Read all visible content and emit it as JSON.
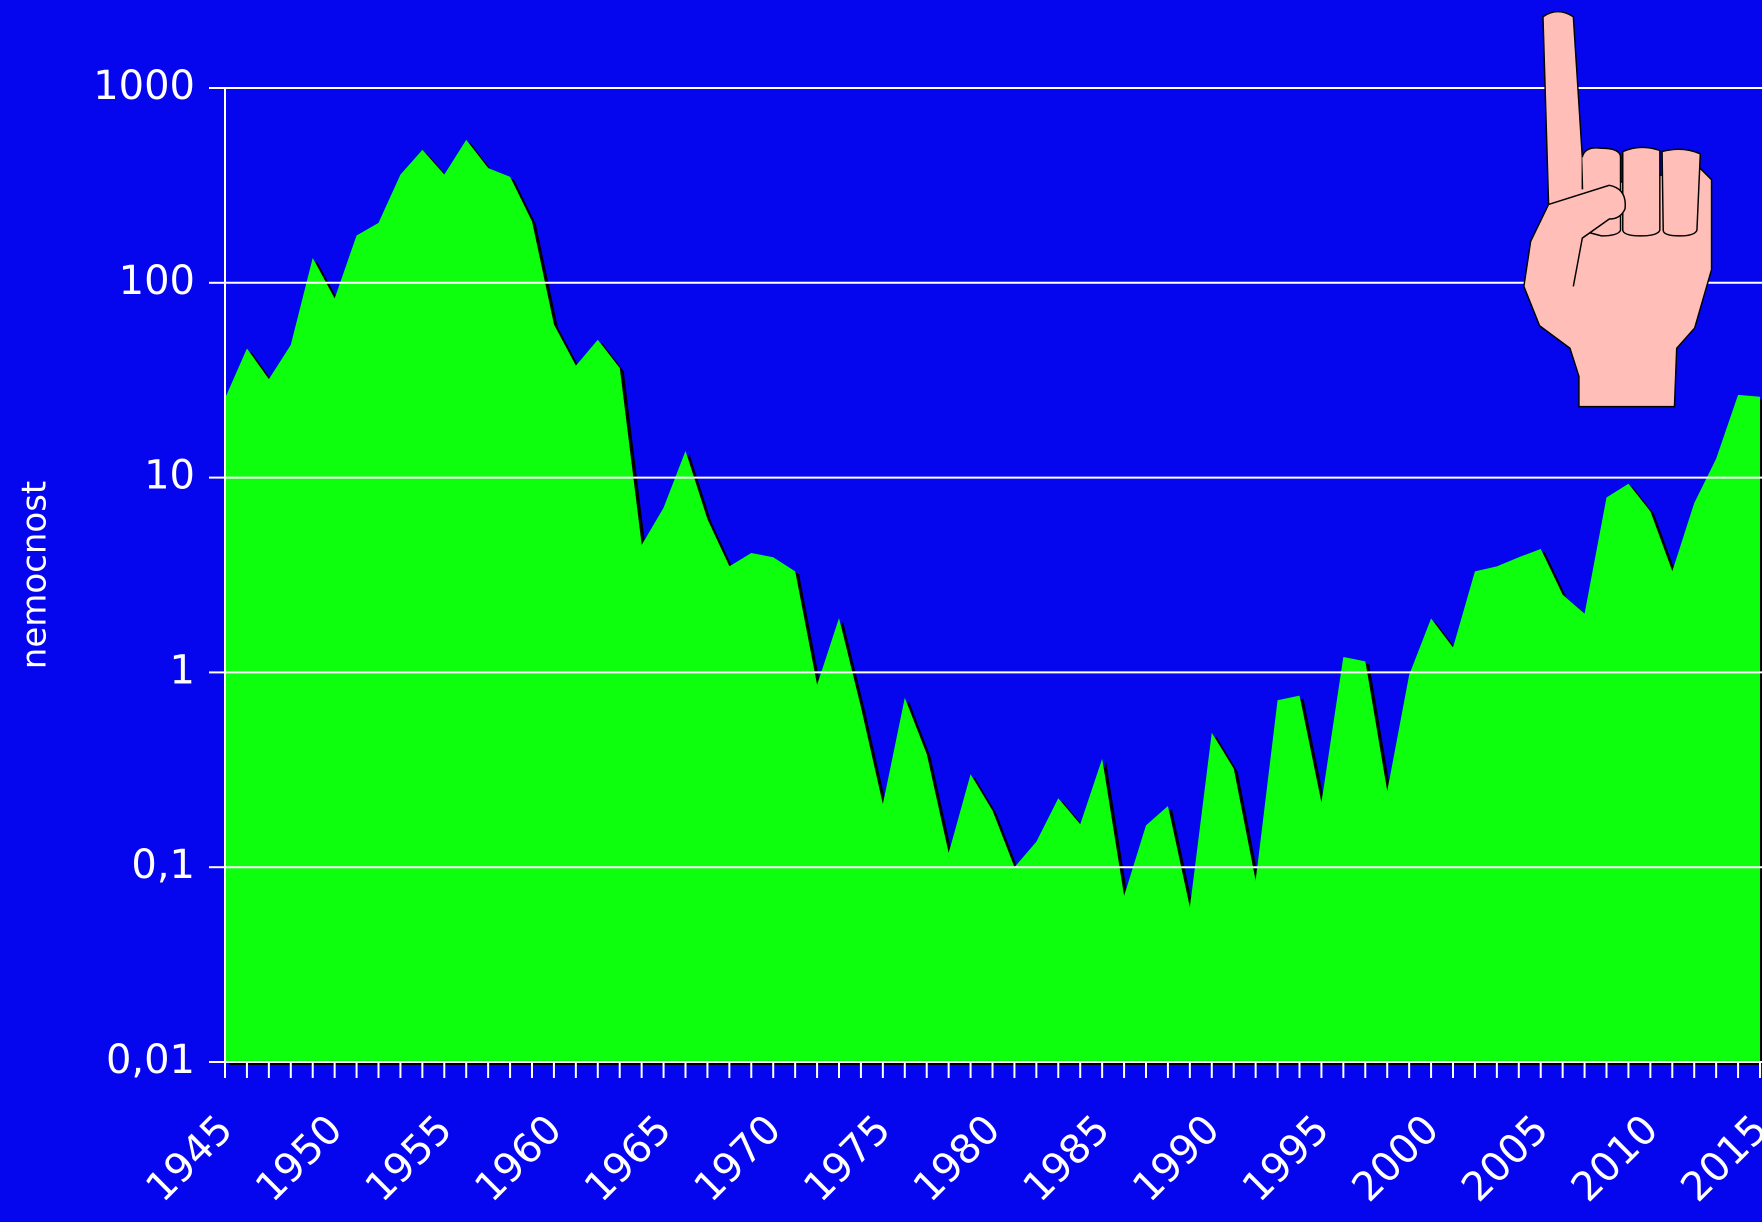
{
  "chart_data": {
    "type": "area",
    "y_label": "nemocnost",
    "log_scale": true,
    "grid": true,
    "color": "#0bff10",
    "background": "#0606ee",
    "x": [
      1945,
      1946,
      1947,
      1948,
      1949,
      1950,
      1951,
      1952,
      1953,
      1954,
      1955,
      1956,
      1957,
      1958,
      1959,
      1960,
      1961,
      1962,
      1963,
      1964,
      1965,
      1966,
      1967,
      1968,
      1969,
      1970,
      1971,
      1972,
      1973,
      1974,
      1975,
      1976,
      1977,
      1978,
      1979,
      1980,
      1981,
      1982,
      1983,
      1984,
      1985,
      1986,
      1987,
      1988,
      1989,
      1990,
      1991,
      1992,
      1993,
      1994,
      1995,
      1996,
      1997,
      1998,
      1999,
      2000,
      2001,
      2002,
      2003,
      2004,
      2005,
      2006,
      2007,
      2008,
      2009,
      2010,
      2011,
      2012,
      2013,
      2014,
      2015
    ],
    "values": [
      25.5,
      46,
      32,
      48,
      134,
      83,
      175,
      203,
      359,
      481,
      359,
      542,
      388,
      350,
      206,
      61,
      37.5,
      51,
      36.5,
      4.5,
      7.0,
      13.7,
      6.1,
      3.5,
      4.1,
      3.9,
      3.3,
      0.86,
      1.9,
      0.66,
      0.21,
      0.74,
      0.38,
      0.118,
      0.3,
      0.195,
      0.1,
      0.135,
      0.226,
      0.166,
      0.36,
      0.071,
      0.164,
      0.206,
      0.062,
      0.49,
      0.32,
      0.085,
      0.72,
      0.76,
      0.214,
      1.2,
      1.14,
      0.245,
      0.97,
      1.89,
      1.34,
      3.3,
      3.5,
      3.9,
      4.3,
      2.5,
      2.0,
      7.9,
      9.3,
      6.7,
      3.3,
      7.4,
      12.5,
      26.6,
      26
    ],
    "xlim": [
      1945,
      2015
    ],
    "xticks": [
      1945,
      1950,
      1955,
      1960,
      1965,
      1970,
      1975,
      1980,
      1985,
      1990,
      1995,
      2000,
      2005,
      2010,
      2015
    ],
    "ylim": [
      0.01,
      1000
    ],
    "yticks": [
      {
        "value": 0.01,
        "label": "0,01"
      },
      {
        "value": 0.1,
        "label": "0,1"
      },
      1,
      10,
      100,
      1000
    ]
  }
}
